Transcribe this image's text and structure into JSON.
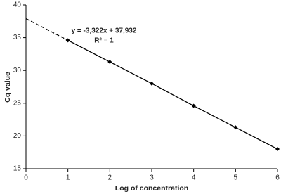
{
  "chart_data": {
    "type": "scatter",
    "x_label": "Log of concentration",
    "y_label": "Cq value",
    "x": [
      1,
      2,
      3,
      4,
      5,
      6
    ],
    "series": [
      {
        "color": "#000000",
        "values": [
          34.6,
          31.3,
          28.0,
          24.6,
          21.3,
          18.0
        ]
      }
    ],
    "trendline_extension": {
      "x": [
        0,
        1
      ],
      "values": [
        37.9,
        34.6
      ],
      "color": "#000000",
      "dashed": true
    },
    "annotations": [
      "y = -3,322x + 37,932",
      "R² = 1"
    ],
    "xlim": [
      0,
      6
    ],
    "xticks": [
      0,
      1,
      2,
      3,
      4,
      5,
      6
    ],
    "ylim": [
      15,
      40
    ],
    "yticks": [
      15,
      20,
      25,
      30,
      35,
      40
    ],
    "grid": false
  }
}
